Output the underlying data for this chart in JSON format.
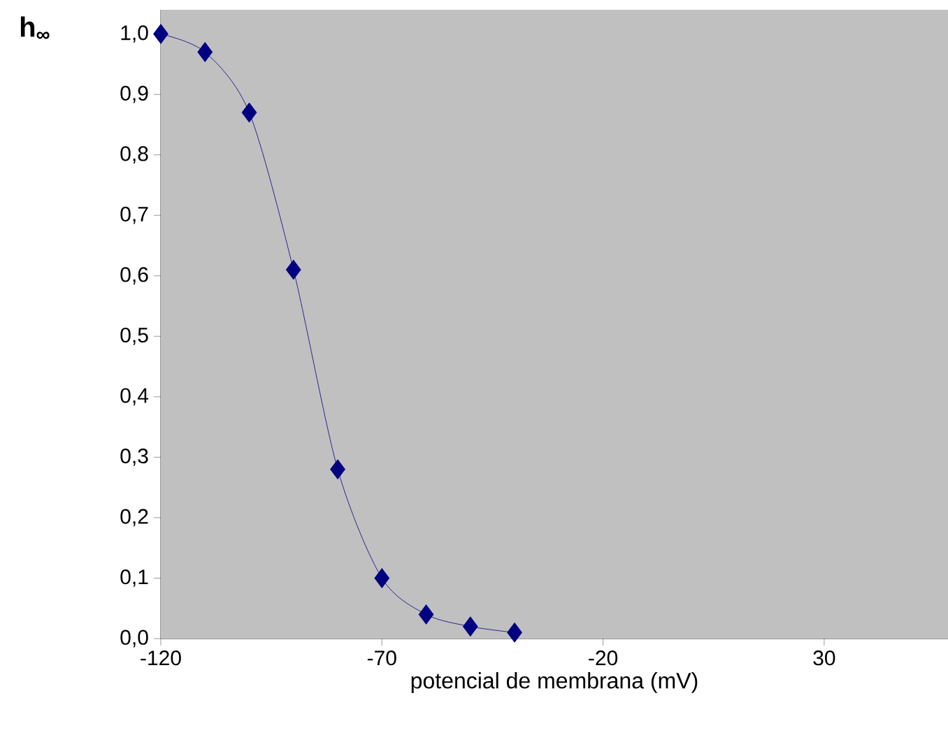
{
  "chart_data": {
    "type": "line",
    "xlabel": "potencial de membrana (mV)",
    "ylabel": "h$_{∞}$",
    "x": [
      -120,
      -110,
      -100,
      -90,
      -80,
      -70,
      -60,
      -50,
      -40
    ],
    "series": [
      {
        "color": "#000080",
        "values": [
          1.0,
          0.97,
          0.87,
          0.61,
          0.28,
          0.1,
          0.04,
          0.02,
          0.01
        ]
      }
    ],
    "marker": "diamond",
    "line_style": "solid",
    "grid": false,
    "xlim": [
      -120,
      58
    ],
    "xticks": [
      -120,
      -70,
      -20,
      30
    ],
    "ylim": [
      0,
      1.04
    ],
    "yticks": [
      {
        "value": 0,
        "label": "0,0"
      },
      {
        "value": 0.1,
        "label": "0,1"
      },
      {
        "value": 0.2,
        "label": "0,2"
      },
      {
        "value": 0.3,
        "label": "0,3"
      },
      {
        "value": 0.4,
        "label": "0,4"
      },
      {
        "value": 0.5,
        "label": "0,5"
      },
      {
        "value": 0.6,
        "label": "0,6"
      },
      {
        "value": 0.7,
        "label": "0,7"
      },
      {
        "value": 0.8,
        "label": "0,8"
      },
      {
        "value": 0.9,
        "label": "0,9"
      },
      {
        "value": 1.0,
        "label": "1,0"
      }
    ]
  }
}
